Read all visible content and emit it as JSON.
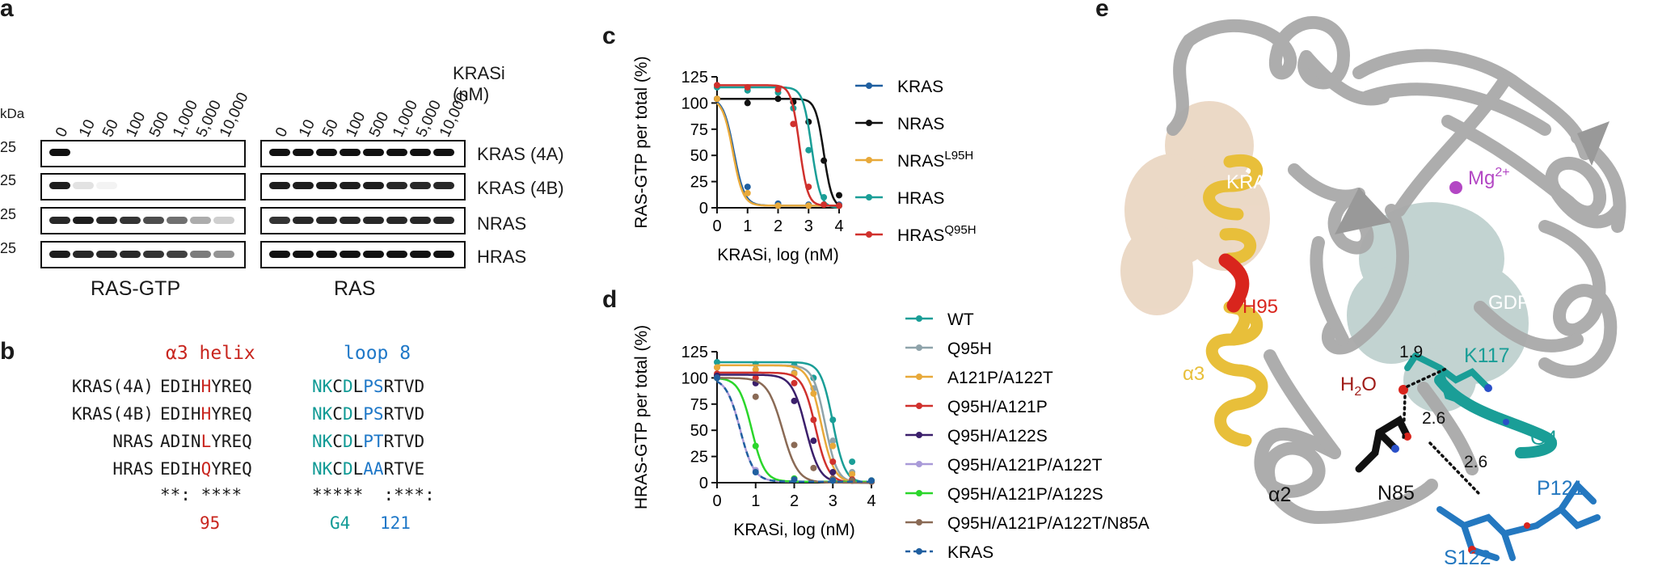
{
  "panels": {
    "a": "a",
    "b": "b",
    "c": "c",
    "d": "d",
    "e": "e"
  },
  "panel_a": {
    "kda_label": "kDa",
    "kda_marks": [
      "25",
      "25",
      "25",
      "25"
    ],
    "concentrations": [
      "0",
      "10",
      "50",
      "100",
      "500",
      "1,000",
      "5,000",
      "10,000"
    ],
    "kras_inhibitor_label": "KRASi",
    "kras_inhibitor_unit": "(nM)",
    "rows": [
      "KRAS (4A)",
      "KRAS (4B)",
      "NRAS",
      "HRAS"
    ],
    "left_group": "RAS-GTP",
    "right_group": "RAS",
    "band_intensity_left": [
      [
        1,
        0,
        0,
        0,
        0,
        0,
        0,
        0
      ],
      [
        0.95,
        0.12,
        0.05,
        0,
        0,
        0,
        0,
        0
      ],
      [
        0.9,
        0.95,
        0.9,
        0.85,
        0.75,
        0.6,
        0.35,
        0.2
      ],
      [
        0.95,
        0.9,
        0.9,
        0.9,
        0.85,
        0.8,
        0.55,
        0.45
      ]
    ],
    "band_intensity_right": [
      [
        1,
        1,
        1,
        1,
        1,
        1,
        1,
        1
      ],
      [
        0.95,
        0.95,
        0.95,
        0.95,
        0.95,
        0.9,
        0.9,
        0.9
      ],
      [
        0.85,
        0.9,
        0.9,
        0.9,
        0.9,
        0.9,
        0.9,
        0.9
      ],
      [
        1,
        1,
        1,
        1,
        1,
        1,
        1,
        1
      ]
    ]
  },
  "panel_b": {
    "helix_label": "α3 helix",
    "loop_label": "loop 8",
    "rows": [
      {
        "name": "KRAS(4A)",
        "helix": [
          "EDIH",
          "H",
          "YREQ"
        ],
        "loop": [
          "NK",
          "C",
          "D",
          "L",
          "PS",
          "RTVD"
        ]
      },
      {
        "name": "KRAS(4B)",
        "helix": [
          "EDIH",
          "H",
          "YREQ"
        ],
        "loop": [
          "NK",
          "C",
          "D",
          "L",
          "PS",
          "RTVD"
        ]
      },
      {
        "name": "NRAS",
        "helix": [
          "ADIN",
          "L",
          "YREQ"
        ],
        "loop": [
          "NK",
          "C",
          "D",
          "L",
          "PT",
          "RTVD"
        ]
      },
      {
        "name": "HRAS",
        "helix": [
          "EDIH",
          "Q",
          "YREQ"
        ],
        "loop": [
          "NK",
          "C",
          "D",
          "L",
          "AA",
          "RTVE"
        ]
      }
    ],
    "conservation_helix": "**: ****",
    "conservation_loop": "*****  :***:",
    "pos_95": "95",
    "pos_g4": "G4",
    "pos_121": "121"
  },
  "chart_data": [
    {
      "type": "line",
      "title": "",
      "xlabel": "KRASi, log (nM)",
      "ylabel": "RAS-GTP per total (%)",
      "xlim": [
        0,
        4
      ],
      "ylim": [
        0,
        125
      ],
      "xticks": [
        "0",
        "1",
        "2",
        "3",
        "4"
      ],
      "yticks": [
        "0",
        "25",
        "50",
        "75",
        "100",
        "125"
      ],
      "series": [
        {
          "name": "KRAS",
          "sup": "",
          "color": "#1f5fa0",
          "top": 105,
          "bottom": 2,
          "ec50": 0.55,
          "hill": 2.5,
          "points": [
            [
              0,
              104
            ],
            [
              1,
              20
            ],
            [
              2,
              4
            ],
            [
              3,
              3
            ],
            [
              4,
              3
            ]
          ]
        },
        {
          "name": "NRAS",
          "sup": "",
          "color": "#111111",
          "top": 104,
          "bottom": 0,
          "ec50": 3.5,
          "hill": 3.2,
          "points": [
            [
              0,
              104
            ],
            [
              1,
              100
            ],
            [
              2,
              104
            ],
            [
              2.5,
              101
            ],
            [
              3,
              82
            ],
            [
              3.5,
              45
            ],
            [
              4,
              12
            ]
          ]
        },
        {
          "name": "NRAS",
          "sup": "L95H",
          "color": "#e8a93a",
          "top": 104,
          "bottom": 2,
          "ec50": 0.52,
          "hill": 2.6,
          "points": [
            [
              0,
              104
            ],
            [
              1,
              14
            ],
            [
              2,
              2
            ],
            [
              3,
              2
            ],
            [
              4,
              2
            ]
          ]
        },
        {
          "name": "HRAS",
          "sup": "",
          "color": "#1a9e97",
          "top": 115,
          "bottom": 0,
          "ec50": 3.1,
          "hill": 3.0,
          "points": [
            [
              0,
              115
            ],
            [
              1,
              112
            ],
            [
              2,
              110
            ],
            [
              2.5,
              95
            ],
            [
              3,
              55
            ],
            [
              3.5,
              10
            ],
            [
              4,
              2
            ]
          ]
        },
        {
          "name": "HRAS",
          "sup": "Q95H",
          "color": "#d0312d",
          "top": 117,
          "bottom": 2,
          "ec50": 2.7,
          "hill": 3.2,
          "points": [
            [
              0,
              117
            ],
            [
              1,
              115
            ],
            [
              2,
              113
            ],
            [
              2.5,
              80
            ],
            [
              3,
              20
            ],
            [
              3.5,
              3
            ],
            [
              4,
              2
            ]
          ]
        }
      ]
    },
    {
      "type": "line",
      "title": "",
      "xlabel": "KRASi, log (nM)",
      "ylabel": "HRAS-GTP per total (%)",
      "xlim": [
        0,
        4
      ],
      "ylim": [
        0,
        125
      ],
      "xticks": [
        "0",
        "1",
        "2",
        "3",
        "4"
      ],
      "yticks": [
        "0",
        "25",
        "50",
        "75",
        "100",
        "125"
      ],
      "series": [
        {
          "name": "WT",
          "color": "#1a9e97",
          "dash": false,
          "top": 115,
          "bottom": 0,
          "ec50": 3.0,
          "hill": 2.8,
          "points": [
            [
              0,
              115
            ],
            [
              1,
              113
            ],
            [
              2,
              112
            ],
            [
              2.5,
              100
            ],
            [
              3,
              60
            ],
            [
              3.5,
              20
            ],
            [
              4,
              2
            ]
          ]
        },
        {
          "name": "Q95H",
          "color": "#8ea3aa",
          "dash": false,
          "top": 112,
          "bottom": 0,
          "ec50": 2.8,
          "hill": 2.8,
          "points": [
            [
              0,
              110
            ],
            [
              1,
              108
            ],
            [
              2,
              105
            ],
            [
              2.5,
              90
            ],
            [
              3,
              40
            ],
            [
              3.5,
              10
            ],
            [
              4,
              1
            ]
          ]
        },
        {
          "name": "A121P/A122T",
          "color": "#e8a93a",
          "dash": false,
          "top": 112,
          "bottom": 0,
          "ec50": 2.7,
          "hill": 2.6,
          "points": [
            [
              0,
              110
            ],
            [
              1,
              108
            ],
            [
              2,
              104
            ],
            [
              2.5,
              85
            ],
            [
              3,
              35
            ],
            [
              3.5,
              8
            ],
            [
              4,
              1
            ]
          ]
        },
        {
          "name": "Q95H/A121P",
          "color": "#d0312d",
          "dash": false,
          "top": 105,
          "bottom": 0,
          "ec50": 2.55,
          "hill": 2.6,
          "points": [
            [
              0,
              104
            ],
            [
              1,
              100
            ],
            [
              2,
              95
            ],
            [
              2.5,
              60
            ],
            [
              3,
              20
            ],
            [
              3.5,
              3
            ],
            [
              4,
              1
            ]
          ]
        },
        {
          "name": "Q95H/A122S",
          "color": "#3b1f6b",
          "dash": false,
          "top": 103,
          "bottom": 0,
          "ec50": 2.3,
          "hill": 2.4,
          "points": [
            [
              0,
              102
            ],
            [
              1,
              95
            ],
            [
              2,
              78
            ],
            [
              2.5,
              40
            ],
            [
              3,
              10
            ],
            [
              3.5,
              2
            ],
            [
              4,
              1
            ]
          ]
        },
        {
          "name": "Q95H/A121P/A122T",
          "color": "#a99ad8",
          "dash": false,
          "top": 100,
          "bottom": 1,
          "ec50": 0.6,
          "hill": 2.4,
          "points": [
            [
              0,
              100
            ],
            [
              1,
              12
            ],
            [
              2,
              3
            ],
            [
              3,
              2
            ],
            [
              4,
              2
            ]
          ]
        },
        {
          "name": "Q95H/A121P/A122S",
          "color": "#2bd62b",
          "dash": false,
          "top": 100,
          "bottom": 1,
          "ec50": 0.9,
          "hill": 2.6,
          "points": [
            [
              0,
              100
            ],
            [
              1,
              35
            ],
            [
              2,
              4
            ],
            [
              3,
              2
            ],
            [
              4,
              2
            ]
          ]
        },
        {
          "name": "Q95H/A121P/A122T/N85A",
          "color": "#8a6a55",
          "dash": false,
          "top": 100,
          "bottom": 0,
          "ec50": 1.7,
          "hill": 2.2,
          "points": [
            [
              0,
              100
            ],
            [
              1,
              82
            ],
            [
              2,
              36
            ],
            [
              2.5,
              14
            ],
            [
              3,
              4
            ],
            [
              3.5,
              2
            ],
            [
              4,
              1
            ]
          ]
        },
        {
          "name": "KRAS",
          "color": "#1f5fa0",
          "dash": true,
          "top": 100,
          "bottom": 1,
          "ec50": 0.6,
          "hill": 2.4,
          "points": [
            [
              0,
              100
            ],
            [
              1,
              10
            ],
            [
              2,
              3
            ],
            [
              3,
              2
            ],
            [
              4,
              2
            ]
          ]
        }
      ]
    }
  ],
  "panel_e": {
    "labels": {
      "krasi": "KRASi",
      "mg_base": "Mg",
      "mg_sup": "2+",
      "gdp": "GDP",
      "h95": "H95",
      "alpha3": "α3",
      "alpha2": "α2",
      "water_h": "H",
      "water_2": "2",
      "water_o": "O",
      "k117": "K117",
      "g4": "G4",
      "n85": "N85",
      "p121": "P121",
      "s122": "S122",
      "d1": "1.9",
      "d2": "2.6",
      "d3": "2.6"
    },
    "colors": {
      "ribbon": "#a9a9a9",
      "helix_gold": "#e8bf3a",
      "h95": "#d9251d",
      "krasi_surface": "#d9b48f",
      "gdp_surface": "#7a9e9a",
      "mg": "#b347c4",
      "teal": "#1a9e97",
      "blue": "#2478c0"
    }
  }
}
